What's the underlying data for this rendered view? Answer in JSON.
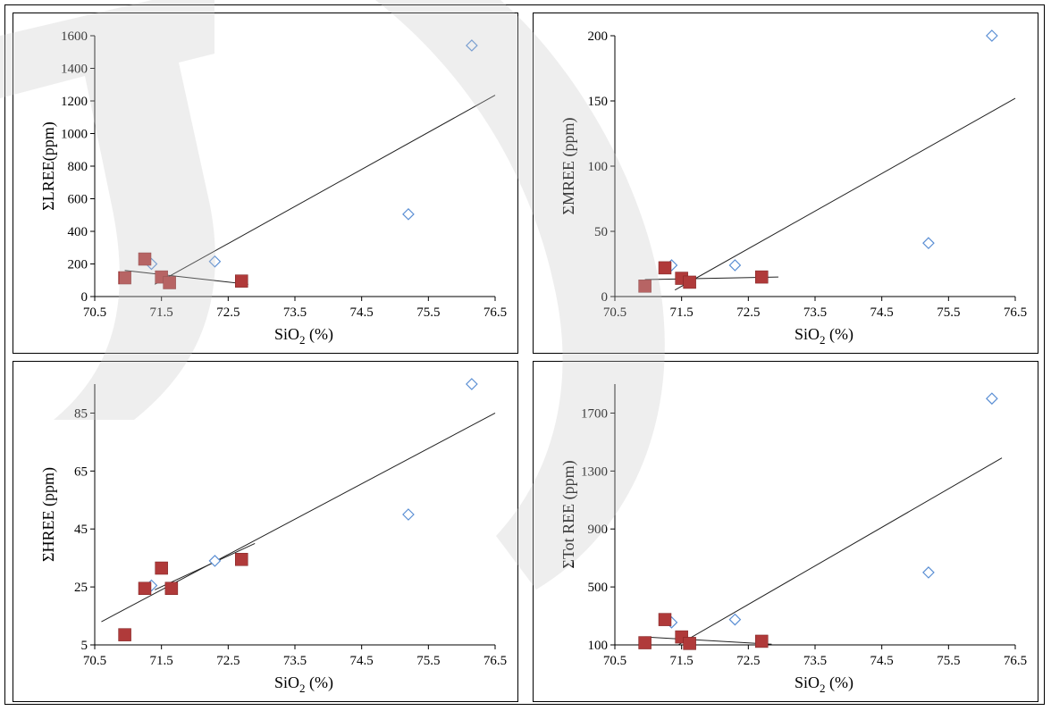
{
  "chart_data": [
    {
      "type": "scatter",
      "title": "",
      "xlabel_main": "SiO",
      "xlabel_sub": "2",
      "xlabel_tail": " (%)",
      "ylabel": "ΣLREE(ppm)",
      "xlim": [
        70.5,
        76.5
      ],
      "ylim": [
        0,
        1600
      ],
      "xticks": [
        "70.5",
        "71.5",
        "72.5",
        "73.5",
        "74.5",
        "75.5",
        "76.5"
      ],
      "yticks": [
        "0",
        "200",
        "400",
        "600",
        "800",
        "1000",
        "1200",
        "1400",
        "1600"
      ],
      "series": [
        {
          "marker": "diamond",
          "color": "#5b8fd4",
          "points": [
            [
              71.35,
              200
            ],
            [
              72.3,
              215
            ],
            [
              75.2,
              505
            ],
            [
              76.15,
              1540
            ]
          ]
        },
        {
          "marker": "square",
          "color": "#b03a3a",
          "points": [
            [
              70.95,
              115
            ],
            [
              71.25,
              230
            ],
            [
              71.5,
              120
            ],
            [
              71.62,
              85
            ],
            [
              72.7,
              95
            ]
          ]
        }
      ],
      "trendlines": [
        {
          "x": [
            71.4,
            76.5
          ],
          "y": [
            75,
            1235
          ]
        },
        {
          "x": [
            70.95,
            72.8
          ],
          "y": [
            160,
            75
          ]
        }
      ]
    },
    {
      "type": "scatter",
      "title": "",
      "xlabel_main": "SiO",
      "xlabel_sub": "2",
      "xlabel_tail": " (%)",
      "ylabel": "ΣMREE (ppm)",
      "xlim": [
        70.5,
        76.5
      ],
      "ylim": [
        0,
        200
      ],
      "xticks": [
        "70.5",
        "71.5",
        "72.5",
        "73.5",
        "74.5",
        "75.5",
        "76.5"
      ],
      "yticks": [
        "0",
        "50",
        "100",
        "150",
        "200"
      ],
      "series": [
        {
          "marker": "diamond",
          "color": "#5b8fd4",
          "points": [
            [
              71.35,
              24
            ],
            [
              72.3,
              24
            ],
            [
              75.2,
              41
            ],
            [
              76.15,
              200
            ]
          ]
        },
        {
          "marker": "square",
          "color": "#b03a3a",
          "points": [
            [
              70.95,
              8
            ],
            [
              71.25,
              22
            ],
            [
              71.5,
              14
            ],
            [
              71.62,
              11
            ],
            [
              72.7,
              15
            ]
          ]
        }
      ],
      "trendlines": [
        {
          "x": [
            71.4,
            76.5
          ],
          "y": [
            5,
            152
          ]
        },
        {
          "x": [
            70.95,
            72.95
          ],
          "y": [
            13,
            15
          ]
        }
      ]
    },
    {
      "type": "scatter",
      "title": "",
      "xlabel_main": "SiO",
      "xlabel_sub": "2",
      "xlabel_tail": " (%)",
      "ylabel": "ΣHREE (ppm)",
      "xlim": [
        70.5,
        76.5
      ],
      "ylim": [
        5,
        95
      ],
      "xticks": [
        "70.5",
        "71.5",
        "72.5",
        "73.5",
        "74.5",
        "75.5",
        "76.5"
      ],
      "yticks": [
        "5",
        "25",
        "45",
        "65",
        "85"
      ],
      "series": [
        {
          "marker": "diamond",
          "color": "#5b8fd4",
          "points": [
            [
              71.35,
              25.5
            ],
            [
              72.3,
              34
            ],
            [
              75.2,
              50
            ],
            [
              76.15,
              95
            ]
          ]
        },
        {
          "marker": "square",
          "color": "#b03a3a",
          "points": [
            [
              70.95,
              8.5
            ],
            [
              71.25,
              24.5
            ],
            [
              71.5,
              31.5
            ],
            [
              71.65,
              24.5
            ],
            [
              72.7,
              34.5
            ]
          ]
        }
      ],
      "trendlines": [
        {
          "x": [
            70.6,
            76.5
          ],
          "y": [
            13,
            85
          ]
        },
        {
          "x": [
            71.4,
            72.9
          ],
          "y": [
            24,
            40
          ]
        }
      ]
    },
    {
      "type": "scatter",
      "title": "",
      "xlabel_main": "SiO",
      "xlabel_sub": "2",
      "xlabel_tail": " (%)",
      "ylabel": "ΣTot REE (ppm)",
      "xlim": [
        70.5,
        76.5
      ],
      "ylim": [
        100,
        1900
      ],
      "xticks": [
        "70.5",
        "71.5",
        "72.5",
        "73.5",
        "74.5",
        "75.5",
        "76.5"
      ],
      "yticks": [
        "100",
        "500",
        "900",
        "1300",
        "1700"
      ],
      "series": [
        {
          "marker": "diamond",
          "color": "#5b8fd4",
          "points": [
            [
              71.35,
              255
            ],
            [
              72.3,
              275
            ],
            [
              75.2,
              600
            ],
            [
              76.15,
              1800
            ]
          ]
        },
        {
          "marker": "square",
          "color": "#b03a3a",
          "points": [
            [
              70.95,
              115
            ],
            [
              71.25,
              275
            ],
            [
              71.5,
              155
            ],
            [
              71.62,
              110
            ],
            [
              72.7,
              125
            ]
          ]
        }
      ],
      "trendlines": [
        {
          "x": [
            71.45,
            76.3
          ],
          "y": [
            100,
            1390
          ]
        },
        {
          "x": [
            70.95,
            72.85
          ],
          "y": [
            155,
            105
          ]
        }
      ]
    }
  ]
}
